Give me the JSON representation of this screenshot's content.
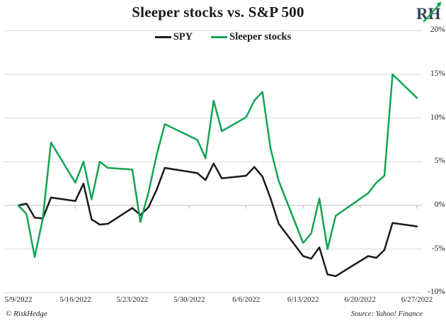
{
  "title": "Sleeper stocks vs. S&P 500",
  "logo": {
    "text": "RH",
    "arrow_color": "#12a452",
    "text_color": "#31455a"
  },
  "legend": [
    {
      "label": "SPY",
      "color": "#1a1a1a"
    },
    {
      "label": "Sleeper stocks",
      "color": "#12a452"
    }
  ],
  "footer": {
    "left": "© RiskHedge",
    "right": "Source: Yahoo! Finance"
  },
  "colors": {
    "gridline": "#dadada",
    "zero_axis": "#c2c2c2",
    "tick": "#b0b0b0",
    "spy_line": "#1a1a1a",
    "sleeper_line": "#12a452"
  },
  "chart_data": {
    "type": "line",
    "title": "Sleeper stocks vs. S&P 500",
    "xlabel": "",
    "ylabel": "",
    "ylim": [
      -10,
      20
    ],
    "grid": true,
    "legend_position": "top-center",
    "y_axis": {
      "side": "right",
      "ticks": [
        {
          "label": "20%",
          "value": 20
        },
        {
          "label": "15%",
          "value": 15
        },
        {
          "label": "10%",
          "value": 10
        },
        {
          "label": "5%",
          "value": 5
        },
        {
          "label": "0%",
          "value": 0
        },
        {
          "label": "-5%",
          "value": -5
        },
        {
          "label": "-10%",
          "value": -10
        }
      ]
    },
    "x_axis": {
      "labels": [
        "5/9/2022",
        "5/16/2022",
        "5/23/2022",
        "5/30/2022",
        "6/6/2022",
        "6/13/2022",
        "6/20/2022",
        "6/27/2022"
      ],
      "label_day_offsets": [
        0,
        7,
        14,
        21,
        28,
        35,
        42,
        49
      ]
    },
    "trading_dates": [
      "5/9",
      "5/10",
      "5/11",
      "5/12",
      "5/13",
      "5/16",
      "5/17",
      "5/18",
      "5/19",
      "5/20",
      "5/23",
      "5/24",
      "5/25",
      "5/26",
      "5/27",
      "5/31",
      "6/1",
      "6/2",
      "6/3",
      "6/6",
      "6/7",
      "6/8",
      "6/9",
      "6/10",
      "6/13",
      "6/14",
      "6/15",
      "6/16",
      "6/17",
      "6/21",
      "6/22",
      "6/23",
      "6/24",
      "6/27"
    ],
    "day_offsets": [
      0,
      1,
      2,
      3,
      4,
      7,
      8,
      9,
      10,
      11,
      14,
      15,
      16,
      17,
      18,
      22,
      23,
      24,
      25,
      28,
      29,
      30,
      31,
      32,
      35,
      36,
      37,
      38,
      39,
      43,
      44,
      45,
      46,
      49
    ],
    "series": [
      {
        "name": "SPY",
        "color": "#1a1a1a",
        "values": [
          0.0,
          0.2,
          -1.4,
          -1.5,
          0.9,
          0.5,
          2.5,
          -1.6,
          -2.2,
          -2.1,
          -0.3,
          -1.1,
          -0.2,
          1.8,
          4.3,
          3.7,
          2.9,
          4.8,
          3.1,
          3.4,
          4.4,
          3.3,
          0.8,
          -2.1,
          -5.8,
          -6.1,
          -4.8,
          -7.9,
          -8.1,
          -5.8,
          -6.0,
          -5.1,
          -2.0,
          -2.4
        ]
      },
      {
        "name": "Sleeper stocks",
        "color": "#12a452",
        "values": [
          0.0,
          -1.0,
          -5.9,
          -1.5,
          7.2,
          2.6,
          5.0,
          0.7,
          5.0,
          4.3,
          4.1,
          -1.9,
          1.5,
          5.8,
          9.3,
          7.5,
          5.4,
          12.0,
          8.5,
          10.1,
          12.0,
          13.0,
          6.5,
          2.8,
          -4.3,
          -3.2,
          0.8,
          -5.0,
          -1.2,
          1.4,
          2.6,
          3.4,
          15.0,
          12.3
        ]
      }
    ]
  }
}
